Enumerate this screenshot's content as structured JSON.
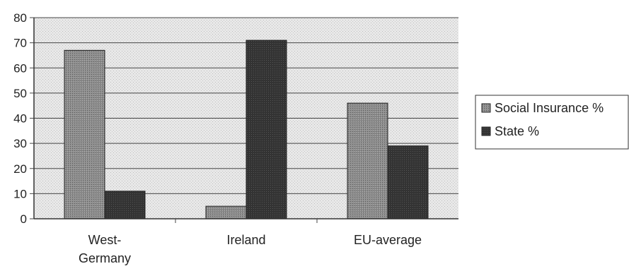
{
  "chart_data": {
    "type": "bar",
    "title": "",
    "xlabel": "",
    "ylabel": "",
    "categories": [
      "West-Germany",
      "Ireland",
      "EU-average"
    ],
    "category_label_lines": [
      [
        "West-",
        "Germany"
      ],
      [
        "Ireland"
      ],
      [
        "EU-average"
      ]
    ],
    "series": [
      {
        "name": "Social Insurance %",
        "values": [
          67,
          5,
          46
        ],
        "color": "#8a8a8a"
      },
      {
        "name": "State %",
        "values": [
          11,
          71,
          29
        ],
        "color": "#333333"
      }
    ],
    "ylim": [
      0,
      80
    ],
    "yticks": [
      0,
      10,
      20,
      30,
      40,
      50,
      60,
      70,
      80
    ],
    "grid": true,
    "legend_position": "right",
    "plot_background": "#e7e7e7"
  }
}
